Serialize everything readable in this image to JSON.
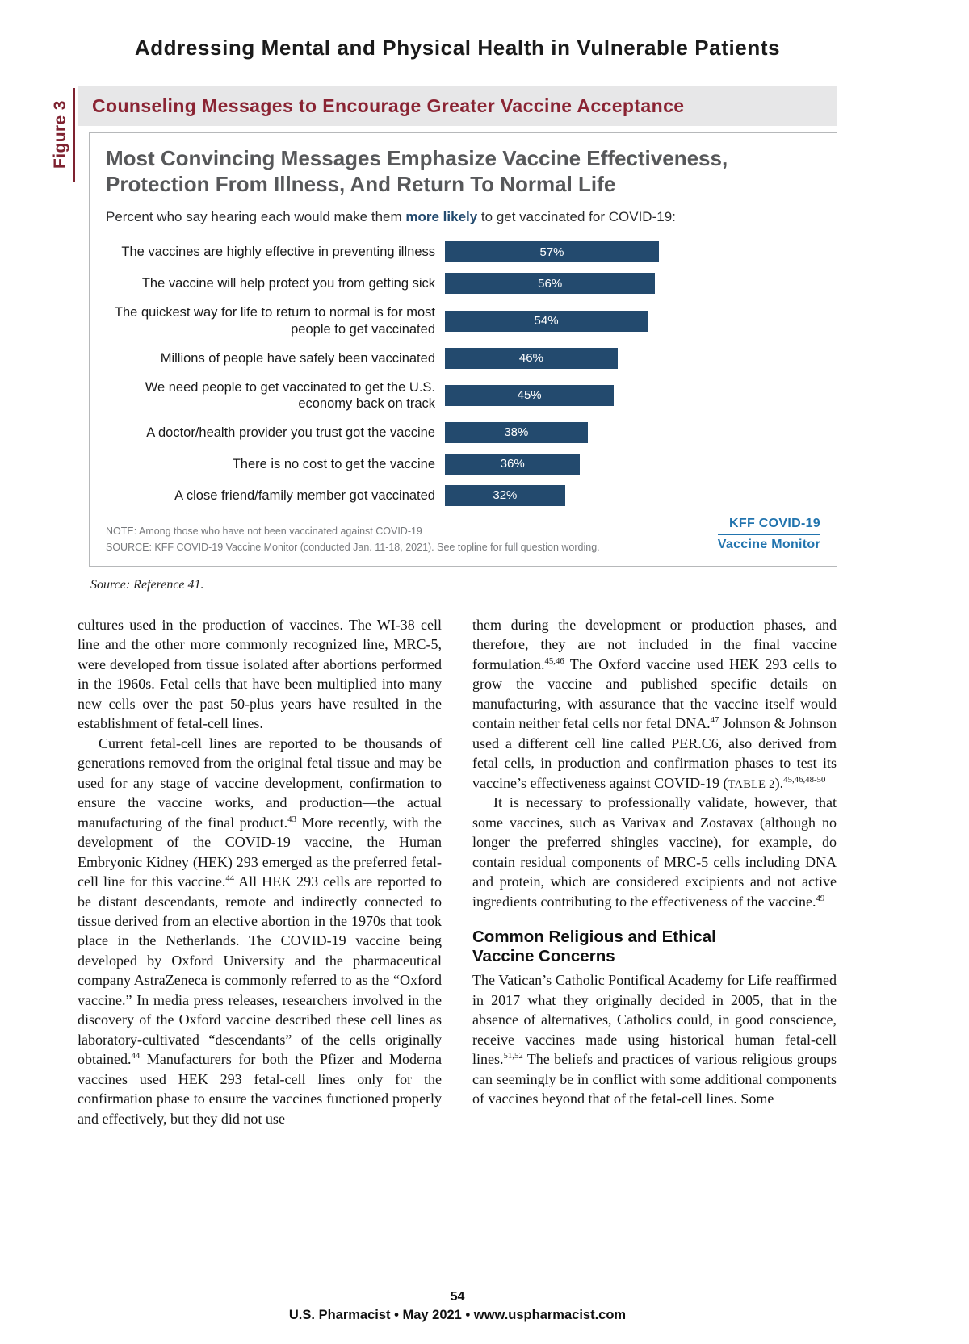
{
  "page": {
    "header_title": "Addressing Mental and Physical Health in Vulnerable Patients",
    "footer_page_number": "54",
    "footer_text": "U.S. Pharmacist • May 2021 • www.uspharmacist.com"
  },
  "figure": {
    "side_label": "Figure 3",
    "banner_title": "Counseling Messages to Encourage Greater Vaccine Acceptance",
    "caption": "Source: Reference 41.",
    "logo": {
      "line1": "KFF COVID-19",
      "line2": "Vaccine Monitor"
    },
    "colors": {
      "maroon": "#8a2433",
      "banner_bg": "#e7e7e8",
      "title_gray": "#57585a",
      "bar_navy": "#234a6e",
      "kff_blue": "#2274ae",
      "note_gray": "#77797c"
    }
  },
  "chart_data": {
    "type": "bar",
    "orientation": "horizontal",
    "title": "Most Convincing Messages Emphasize Vaccine Effectiveness, Protection From Illness, And Return To Normal Life",
    "title_lines": [
      "Most Convincing Messages Emphasize Vaccine Effectiveness,",
      "Protection From Illness, And Return To Normal Life"
    ],
    "subtitle": "Percent who say hearing each would make them more likely to get vaccinated for COVID-19:",
    "subtitle_parts": {
      "prefix": "Percent who say hearing each would make them ",
      "bold": "more likely",
      "suffix": " to get vaccinated for COVID-19:"
    },
    "categories": [
      "The vaccines are highly effective in preventing illness",
      "The vaccine will help protect you from getting sick",
      "The quickest way for life to return to normal is for most people to get vaccinated",
      "Millions of people have safely been vaccinated",
      "We need people to get vaccinated to get the U.S. economy back on track",
      "A doctor/health provider you trust got the vaccine",
      "There is no cost to get the vaccine",
      "A close friend/family member got vaccinated"
    ],
    "values": [
      57,
      56,
      54,
      46,
      45,
      38,
      36,
      32
    ],
    "value_suffix": "%",
    "xlim": [
      0,
      100
    ],
    "grid": false,
    "legend": "none",
    "bar_color": "#234a6e",
    "note": "NOTE: Among those who have not been vaccinated against COVID-19",
    "source": "SOURCE: KFF COVID-19 Vaccine Monitor (conducted Jan. 11-18, 2021). See topline for full question wording."
  },
  "article": {
    "columns": [
      {
        "blocks": [
          {
            "type": "p",
            "indent": false,
            "segments": [
              {
                "t": "cultures used in the production of vaccines. The WI-38 cell line and the other more commonly recognized line, MRC-5, were developed from tissue isolated after abortions performed in the 1960s. Fetal cells that have been multiplied into many new cells over the past 50-plus years have resulted in the establishment of fetal-cell lines."
              }
            ]
          },
          {
            "type": "p",
            "indent": true,
            "segments": [
              {
                "t": "Current fetal-cell lines are reported to be thousands of generations removed from the original fetal tissue and may be used for any stage of vaccine development, confirmation to ensure the vaccine works, and production—the actual manufacturing of the final product."
              },
              {
                "t": "43",
                "sup": true
              },
              {
                "t": " More recently, with the development of the COVID-19 vaccine, the Human Embryonic Kidney (HEK) 293 emerged as the preferred fetal-cell line for this vaccine."
              },
              {
                "t": "44",
                "sup": true
              },
              {
                "t": " All HEK 293 cells are reported to be distant descendants, remote and indirectly connected to tissue derived from an elective abortion in the 1970s that took place in the Netherlands. The COVID-19 vaccine being developed by Oxford University and the pharmaceutical company AstraZeneca is commonly referred to as the “Oxford vaccine.” In media press releases, researchers involved in the discovery of the Oxford vaccine described these cell lines as laboratory-cultivated “descendants” of the cells originally obtained."
              },
              {
                "t": "44",
                "sup": true
              },
              {
                "t": " Manufacturers for both the Pfizer and Moderna vaccines used HEK 293 fetal-cell lines only for the confirmation phase to ensure the vaccines functioned properly and effectively, but they did not use"
              }
            ]
          }
        ]
      },
      {
        "blocks": [
          {
            "type": "p",
            "indent": false,
            "segments": [
              {
                "t": "them during the development or production phases, and therefore, they are not included in the final vaccine formulation."
              },
              {
                "t": "45,46",
                "sup": true
              },
              {
                "t": " The Oxford vaccine used HEK 293 cells to grow the vaccine and published specific details on manufacturing, with assurance that the vaccine itself would contain neither fetal cells nor fetal DNA."
              },
              {
                "t": "47",
                "sup": true
              },
              {
                "t": " Johnson & Johnson used a different cell line called PER.C6, also derived from fetal cells, in production and confirmation phases to test its vaccine’s effectiveness against COVID-19 ("
              },
              {
                "t": "TABLE 2",
                "sc": true
              },
              {
                "t": ")."
              },
              {
                "t": "45,46,48-50",
                "sup": true
              }
            ]
          },
          {
            "type": "p",
            "indent": true,
            "segments": [
              {
                "t": "It is necessary to professionally validate, however, that some vaccines, such as Varivax and Zostavax (although no longer the preferred shingles vaccine), for example, do contain residual components of MRC-5 cells including DNA and protein, which are considered excipients and not active ingredients contributing to the effectiveness of the vaccine."
              },
              {
                "t": "49",
                "sup": true
              }
            ]
          },
          {
            "type": "heading",
            "lines": [
              "Common Religious and Ethical",
              "Vaccine Concerns"
            ]
          },
          {
            "type": "p",
            "indent": false,
            "segments": [
              {
                "t": "The Vatican’s Catholic Pontifical Academy for Life reaffirmed in 2017 what they originally decided in 2005, that in the absence of alternatives, Catholics could, in good conscience, receive vaccines made using historical human fetal-cell lines."
              },
              {
                "t": "51,52",
                "sup": true
              },
              {
                "t": " The beliefs and practices of various religious groups can seemingly be in conflict with some additional components of vaccines beyond that of the fetal-cell lines. Some"
              }
            ]
          }
        ]
      }
    ]
  }
}
